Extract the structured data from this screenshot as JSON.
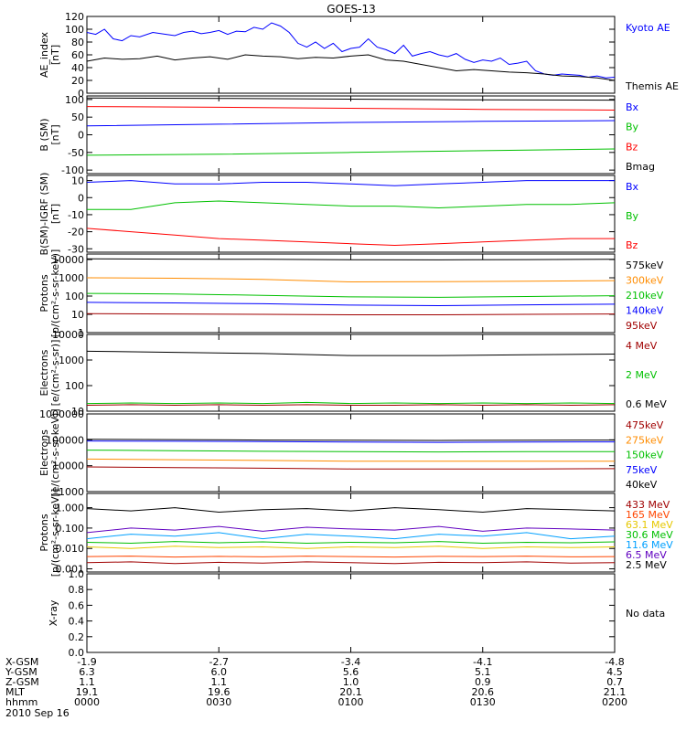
{
  "title": "GOES-13",
  "footer": {
    "rows": [
      {
        "label": "X-GSM",
        "values": [
          "-1.9",
          "-2.7",
          "-3.4",
          "-4.1",
          "-4.8"
        ]
      },
      {
        "label": "Y-GSM",
        "values": [
          "6.3",
          "6.0",
          "5.6",
          "5.1",
          "4.5"
        ]
      },
      {
        "label": "Z-GSM",
        "values": [
          "1.1",
          "1.1",
          "1.0",
          "0.9",
          "0.7"
        ]
      },
      {
        "label": "MLT",
        "values": [
          "19.1",
          "19.6",
          "20.1",
          "20.6",
          "21.1"
        ]
      },
      {
        "label": "hhmm",
        "values": [
          "0000",
          "0030",
          "0100",
          "0130",
          "0200"
        ]
      }
    ],
    "date": "2010 Sep 16"
  },
  "chart_data": [
    {
      "type": "line",
      "scale": "linear",
      "ylabel": [
        "AE_index",
        "[nT]"
      ],
      "ticks": [
        0,
        20,
        40,
        60,
        80,
        100,
        120
      ],
      "ylim": [
        0,
        120
      ],
      "series": [
        {
          "name": "Kyoto AE",
          "color": "#0000ff",
          "x": [
            0,
            2,
            4,
            6,
            8,
            10,
            12,
            15,
            18,
            20,
            22,
            24,
            26,
            28,
            30,
            32,
            34,
            36,
            38,
            40,
            42,
            44,
            46,
            48,
            50,
            52,
            54,
            56,
            58,
            60,
            62,
            64,
            66,
            68,
            70,
            72,
            74,
            76,
            78,
            80,
            82,
            84,
            86,
            88,
            90,
            92,
            94,
            96,
            98,
            100,
            102,
            104,
            106,
            108,
            110,
            112,
            114,
            116,
            118,
            120
          ],
          "y": [
            95,
            92,
            100,
            85,
            82,
            90,
            88,
            95,
            92,
            90,
            95,
            97,
            93,
            95,
            98,
            92,
            97,
            96,
            103,
            100,
            110,
            105,
            95,
            78,
            72,
            80,
            70,
            78,
            65,
            70,
            72,
            85,
            72,
            68,
            62,
            75,
            58,
            62,
            65,
            60,
            57,
            62,
            53,
            48,
            52,
            50,
            55,
            45,
            47,
            50,
            35,
            30,
            28,
            30,
            29,
            28,
            25,
            27,
            24,
            25
          ]
        },
        {
          "name": "Themis AE",
          "color": "#000000",
          "x": [
            0,
            4,
            8,
            12,
            16,
            20,
            24,
            28,
            32,
            36,
            40,
            44,
            48,
            52,
            56,
            60,
            64,
            68,
            72,
            76,
            80,
            84,
            88,
            92,
            96,
            100,
            104,
            108,
            112,
            116,
            120
          ],
          "y": [
            50,
            55,
            53,
            54,
            58,
            52,
            55,
            57,
            53,
            60,
            58,
            57,
            54,
            56,
            55,
            58,
            60,
            52,
            50,
            45,
            40,
            35,
            37,
            35,
            33,
            32,
            30,
            27,
            26,
            24,
            20
          ]
        }
      ]
    },
    {
      "type": "line",
      "scale": "linear",
      "ylabel": [
        "B (SM)",
        "[nT]"
      ],
      "ticks": [
        -100,
        -50,
        0,
        50,
        100
      ],
      "ylim": [
        -110,
        110
      ],
      "series": [
        {
          "name": "Bx",
          "color": "#0000ff",
          "x": [
            0,
            30,
            60,
            90,
            120
          ],
          "y": [
            25,
            30,
            35,
            38,
            40
          ]
        },
        {
          "name": "By",
          "color": "#00c000",
          "x": [
            0,
            30,
            60,
            90,
            120
          ],
          "y": [
            -58,
            -55,
            -50,
            -45,
            -40
          ]
        },
        {
          "name": "Bz",
          "color": "#ff0000",
          "x": [
            0,
            30,
            60,
            90,
            120
          ],
          "y": [
            80,
            78,
            75,
            72,
            70
          ]
        },
        {
          "name": "Bmag",
          "color": "#000000",
          "x": [
            0,
            30,
            60,
            90,
            120
          ],
          "y": [
            104,
            103,
            101,
            99,
            98
          ]
        }
      ]
    },
    {
      "type": "line",
      "scale": "linear",
      "ylabel": [
        "B(SM)-IGRF (SM)",
        "[nT]"
      ],
      "ticks": [
        -30,
        -20,
        -10,
        0,
        10
      ],
      "ylim": [
        -32,
        13
      ],
      "series": [
        {
          "name": "Bx",
          "color": "#0000ff",
          "x": [
            0,
            10,
            20,
            30,
            40,
            50,
            60,
            70,
            80,
            90,
            100,
            110,
            120
          ],
          "y": [
            9,
            10,
            8,
            8,
            9,
            9,
            8,
            7,
            8,
            9,
            10,
            10,
            10
          ]
        },
        {
          "name": "By",
          "color": "#00c000",
          "x": [
            0,
            10,
            20,
            30,
            40,
            50,
            60,
            70,
            80,
            90,
            100,
            110,
            120
          ],
          "y": [
            -7,
            -7,
            -3,
            -2,
            -3,
            -4,
            -5,
            -5,
            -6,
            -5,
            -4,
            -4,
            -3
          ]
        },
        {
          "name": "Bz",
          "color": "#ff0000",
          "x": [
            0,
            10,
            20,
            30,
            40,
            50,
            60,
            70,
            80,
            90,
            100,
            110,
            120
          ],
          "y": [
            -18,
            -20,
            -22,
            -24,
            -25,
            -26,
            -27,
            -28,
            -27,
            -26,
            -25,
            -24,
            -24
          ]
        }
      ]
    },
    {
      "type": "line",
      "scale": "log",
      "ylabel": [
        "Protons",
        "[p/(cm²-s-sr-keV)]"
      ],
      "ticks": [
        1,
        10,
        100,
        1000,
        10000
      ],
      "ylim": [
        1,
        20000
      ],
      "series": [
        {
          "name": "575keV",
          "color": "#000000",
          "x": [
            0,
            20,
            40,
            60,
            80,
            100,
            120
          ],
          "y": [
            11000,
            10500,
            10200,
            9800,
            9600,
            9900,
            10200
          ]
        },
        {
          "name": "300keV",
          "color": "#ff8c00",
          "x": [
            0,
            20,
            40,
            60,
            80,
            100,
            120
          ],
          "y": [
            1000,
            950,
            820,
            600,
            620,
            650,
            700
          ]
        },
        {
          "name": "210keV",
          "color": "#00c000",
          "x": [
            0,
            20,
            40,
            60,
            80,
            100,
            120
          ],
          "y": [
            140,
            130,
            110,
            90,
            85,
            95,
            105
          ]
        },
        {
          "name": "140keV",
          "color": "#0000ff",
          "x": [
            0,
            20,
            40,
            60,
            80,
            100,
            120
          ],
          "y": [
            45,
            42,
            38,
            32,
            30,
            33,
            36
          ]
        },
        {
          "name": "95keV",
          "color": "#a00000",
          "x": [
            0,
            20,
            40,
            60,
            80,
            100,
            120
          ],
          "y": [
            11,
            10.5,
            10,
            9.5,
            9.5,
            10,
            10.5
          ]
        }
      ]
    },
    {
      "type": "line",
      "scale": "log",
      "ylabel": [
        "Electrons",
        "[e/(cm²-s-sr)]"
      ],
      "ticks": [
        10,
        100,
        1000,
        10000
      ],
      "ylim": [
        10,
        10000
      ],
      "series": [
        {
          "name": "4 MeV",
          "color": "#a00000",
          "x": [
            0,
            10,
            20,
            30,
            40,
            50,
            60,
            70,
            80,
            90,
            100,
            110,
            120
          ],
          "y": [
            17,
            18,
            17,
            18,
            17,
            18,
            17,
            17,
            18,
            17,
            18,
            17,
            18
          ]
        },
        {
          "name": "2 MeV",
          "color": "#00c000",
          "x": [
            0,
            10,
            20,
            30,
            40,
            50,
            60,
            70,
            80,
            90,
            100,
            110,
            120
          ],
          "y": [
            20,
            21,
            20,
            21,
            20,
            22,
            20,
            21,
            20,
            21,
            20,
            21,
            20
          ]
        },
        {
          "name": "0.6 MeV",
          "color": "#000000",
          "x": [
            0,
            20,
            40,
            60,
            80,
            100,
            120
          ],
          "y": [
            2200,
            2000,
            1800,
            1500,
            1500,
            1600,
            1700
          ]
        }
      ]
    },
    {
      "type": "line",
      "scale": "log",
      "ylabel": [
        "Electrons",
        "[e/(cm²-s-sr-keV)]"
      ],
      "ticks": [
        1000,
        10000,
        100000,
        1000000
      ],
      "ylim": [
        1000,
        1000000
      ],
      "series": [
        {
          "name": "475keV",
          "color": "#a00000",
          "x": [
            0,
            20,
            40,
            60,
            80,
            100,
            120
          ],
          "y": [
            9000,
            8500,
            8000,
            7500,
            7500,
            7500,
            7700
          ]
        },
        {
          "name": "275keV",
          "color": "#ff8c00",
          "x": [
            0,
            20,
            40,
            60,
            80,
            100,
            120
          ],
          "y": [
            18000,
            17000,
            16000,
            15000,
            15000,
            15000,
            15000
          ]
        },
        {
          "name": "150keV",
          "color": "#00c000",
          "x": [
            0,
            20,
            40,
            60,
            80,
            100,
            120
          ],
          "y": [
            40000,
            38000,
            36000,
            35000,
            34000,
            35000,
            35000
          ]
        },
        {
          "name": "75keV",
          "color": "#0000ff",
          "x": [
            0,
            20,
            40,
            60,
            80,
            100,
            120
          ],
          "y": [
            90000,
            88000,
            85000,
            82000,
            80000,
            82000,
            83000
          ]
        },
        {
          "name": "40keV",
          "color": "#000000",
          "x": [
            0,
            20,
            40,
            60,
            80,
            100,
            120
          ],
          "y": [
            105000,
            102000,
            98000,
            96000,
            95000,
            97000,
            98000
          ]
        }
      ]
    },
    {
      "type": "line",
      "scale": "log",
      "ylabel": [
        "Protons",
        "[p/(cm²-s-sr-keV)]"
      ],
      "ticks": [
        0.001,
        0.01,
        0.1,
        1
      ],
      "ticklabels": [
        "0.001",
        "0.010",
        "0.100",
        "1.000"
      ],
      "ylim": [
        0.0007,
        5
      ],
      "series": [
        {
          "name": "433 MeV",
          "color": "#a00000",
          "x": [
            0,
            10,
            20,
            30,
            40,
            50,
            60,
            70,
            80,
            90,
            100,
            110,
            120
          ],
          "y": [
            0.002,
            0.0022,
            0.0018,
            0.0021,
            0.0019,
            0.0022,
            0.002,
            0.0018,
            0.0021,
            0.002,
            0.0022,
            0.0019,
            0.002
          ]
        },
        {
          "name": "165 MeV",
          "color": "#ff4500",
          "x": [
            0,
            10,
            20,
            30,
            40,
            50,
            60,
            70,
            80,
            90,
            100,
            110,
            120
          ],
          "y": [
            0.004,
            0.0042,
            0.0038,
            0.0041,
            0.0039,
            0.0042,
            0.004,
            0.0038,
            0.0041,
            0.004,
            0.0042,
            0.0039,
            0.004
          ]
        },
        {
          "name": "63.1 MeV",
          "color": "#e6c800",
          "x": [
            0,
            10,
            20,
            30,
            40,
            50,
            60,
            70,
            80,
            90,
            100,
            110,
            120
          ],
          "y": [
            0.012,
            0.01,
            0.013,
            0.011,
            0.012,
            0.01,
            0.012,
            0.011,
            0.013,
            0.01,
            0.012,
            0.011,
            0.012
          ]
        },
        {
          "name": "30.6 MeV",
          "color": "#00c000",
          "x": [
            0,
            10,
            20,
            30,
            40,
            50,
            60,
            70,
            80,
            90,
            100,
            110,
            120
          ],
          "y": [
            0.02,
            0.018,
            0.022,
            0.019,
            0.021,
            0.018,
            0.02,
            0.019,
            0.022,
            0.018,
            0.02,
            0.019,
            0.021
          ]
        },
        {
          "name": "11.6 MeV",
          "color": "#00a0ff",
          "x": [
            0,
            10,
            20,
            30,
            40,
            50,
            60,
            70,
            80,
            90,
            100,
            110,
            120
          ],
          "y": [
            0.03,
            0.05,
            0.04,
            0.06,
            0.03,
            0.05,
            0.04,
            0.03,
            0.05,
            0.04,
            0.06,
            0.03,
            0.04
          ]
        },
        {
          "name": "6.5 MeV",
          "color": "#6000c0",
          "x": [
            0,
            10,
            20,
            30,
            40,
            50,
            60,
            70,
            80,
            90,
            100,
            110,
            120
          ],
          "y": [
            0.06,
            0.1,
            0.08,
            0.12,
            0.07,
            0.11,
            0.09,
            0.08,
            0.12,
            0.07,
            0.1,
            0.09,
            0.08
          ]
        },
        {
          "name": "2.5 MeV",
          "color": "#000000",
          "x": [
            0,
            10,
            20,
            30,
            40,
            50,
            60,
            70,
            80,
            90,
            100,
            110,
            120
          ],
          "y": [
            0.9,
            0.7,
            1.0,
            0.6,
            0.8,
            0.9,
            0.7,
            1.0,
            0.8,
            0.6,
            0.9,
            0.8,
            0.7
          ]
        }
      ]
    },
    {
      "type": "line",
      "scale": "linear",
      "ylabel": [
        "X-ray"
      ],
      "ticks": [
        0,
        0.2,
        0.4,
        0.6,
        0.8,
        1.0
      ],
      "ticklabels": [
        "0.0",
        "0.2",
        "0.4",
        "0.6",
        "0.8",
        "1.0"
      ],
      "ylim": [
        0,
        1
      ],
      "series": [],
      "note": "No data"
    }
  ]
}
